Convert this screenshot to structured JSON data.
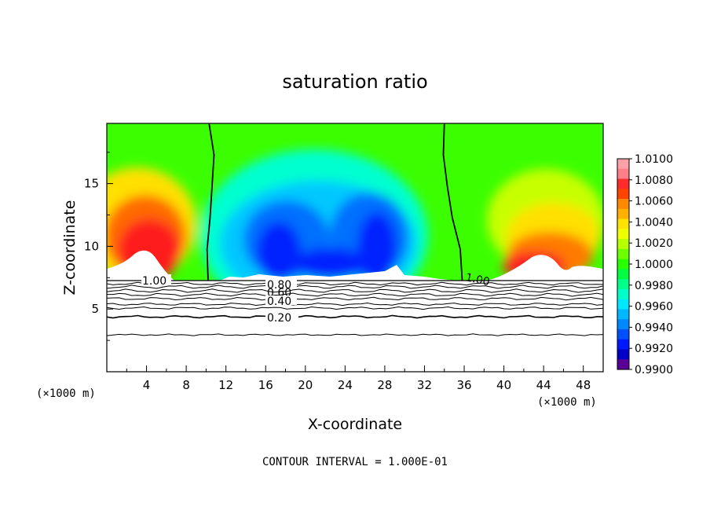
{
  "chart_data": {
    "type": "heatmap",
    "title": "saturation ratio",
    "xlabel": "X-coordinate",
    "ylabel": "Z-coordinate",
    "x_unit_label": "(×1000 m)",
    "x_ticks": [
      4,
      8,
      12,
      16,
      20,
      24,
      28,
      32,
      36,
      40,
      44,
      48
    ],
    "y_ticks": [
      5,
      10,
      15
    ],
    "xlim": [
      0,
      50
    ],
    "ylim": [
      0,
      19.8
    ],
    "footer": "CONTOUR INTERVAL = 1.000E-01",
    "colorbar": {
      "labels": [
        "1.0100",
        "1.0080",
        "1.0060",
        "1.0040",
        "1.0020",
        "1.0000",
        "0.9980",
        "0.9960",
        "0.9940",
        "0.9920",
        "0.9900"
      ],
      "range": [
        0.99,
        1.01
      ],
      "colors": [
        "#ff9fa6",
        "#ff7f88",
        "#ff2a2a",
        "#ff4400",
        "#ff8a00",
        "#ffb000",
        "#ffe300",
        "#f0ff00",
        "#b5ff00",
        "#6dff00",
        "#28ff00",
        "#00ff40",
        "#00ff88",
        "#00ffc8",
        "#00e8ff",
        "#00b8ff",
        "#0088ff",
        "#0050ff",
        "#0018ff",
        "#0000c8",
        "#5a0096"
      ]
    },
    "contour_labels": [
      "1.00",
      "0.80",
      "0.60",
      "0.40",
      "0.20",
      "1.00"
    ],
    "line_contours": [
      {
        "level": 0.2,
        "z": 4.4
      },
      {
        "level": 0.4,
        "z": 5.8
      },
      {
        "level": 0.6,
        "z": 6.3
      },
      {
        "level": 0.8,
        "z": 6.9
      }
    ],
    "contour_1_00_left_x": [
      10.3,
      10.8,
      10.6,
      10.4,
      10.1,
      10.2
    ],
    "contour_1_00_right_x": [
      34.0,
      33.9,
      34.3,
      34.8,
      35.6,
      35.8
    ],
    "colors": {
      "contour_line": "#000000",
      "below_cloud": "#ffffff"
    }
  }
}
